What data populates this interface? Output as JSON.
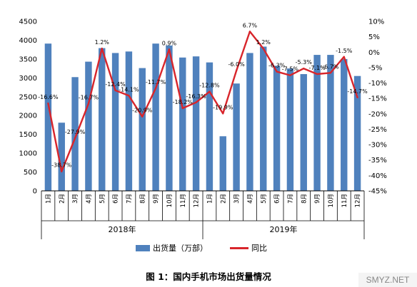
{
  "chart_data": {
    "type": "bar+line",
    "categories": [
      "1月",
      "2月",
      "3月",
      "4月",
      "5月",
      "6月",
      "7月",
      "8月",
      "9月",
      "10月",
      "11月",
      "12月",
      "1月",
      "2月",
      "3月",
      "4月",
      "5月",
      "6月",
      "7月",
      "8月",
      "9月",
      "10月",
      "11月",
      "12月"
    ],
    "year_groups": [
      {
        "label": "2018年",
        "start": 0,
        "end": 11
      },
      {
        "label": "2019年",
        "start": 12,
        "end": 23
      }
    ],
    "series": [
      {
        "name": "出货量（万部）",
        "type": "bar",
        "axis": "left",
        "color": "#4f81bd",
        "values": [
          3910,
          1810,
          3020,
          3430,
          3790,
          3660,
          3700,
          3260,
          3910,
          3860,
          3540,
          3570,
          3410,
          1450,
          2850,
          3660,
          3830,
          3320,
          3250,
          3100,
          3610,
          3610,
          3500,
          3050
        ]
      },
      {
        "name": "同比",
        "type": "line",
        "axis": "right",
        "color": "#d8252b",
        "values": [
          -16.6,
          -38.7,
          -27.9,
          -16.7,
          1.2,
          -12.4,
          -14.1,
          -20.9,
          -11.7,
          0.9,
          -18.2,
          -16.3,
          -12.8,
          -19.9,
          -6.0,
          6.7,
          1.2,
          -6.3,
          -7.5,
          -5.3,
          -7.1,
          -6.7,
          -1.5,
          -14.7
        ],
        "labels": [
          "-16.6%",
          "-38.7%",
          "-27.9%",
          "-16.7%",
          "1.2%",
          "-12.4%",
          "-14.1%",
          "-20.9%",
          "-11.7%",
          "0.9%",
          "-18.2%",
          "-16.3%",
          "-12.8%",
          "-19.9%",
          "-6.0%",
          "6.7%",
          "1.2%",
          "-6.3%",
          "-7.5%",
          "-5.3%",
          "-7.1%",
          "-6.7%",
          "-1.5%",
          "-14.7%"
        ]
      }
    ],
    "y_left": {
      "min": 0,
      "max": 4500,
      "step": 500,
      "ticks": [
        "0",
        "500",
        "1000",
        "1500",
        "2000",
        "2500",
        "3000",
        "3500",
        "4000",
        "4500"
      ]
    },
    "y_right": {
      "min": -45,
      "max": 10,
      "step": 5,
      "ticks": [
        "-45%",
        "-40%",
        "-35%",
        "-30%",
        "-25%",
        "-20%",
        "-15%",
        "-10%",
        "-5%",
        "0%",
        "5%",
        "10%"
      ]
    },
    "grid": false,
    "legend_position": "bottom",
    "title": "图 1：国内手机市场出货量情况"
  },
  "legend": {
    "bar_label": "出货量（万部）",
    "line_label": "同比"
  },
  "caption": "图 1：国内手机市场出货量情况",
  "watermark": "SMYZ.NET"
}
